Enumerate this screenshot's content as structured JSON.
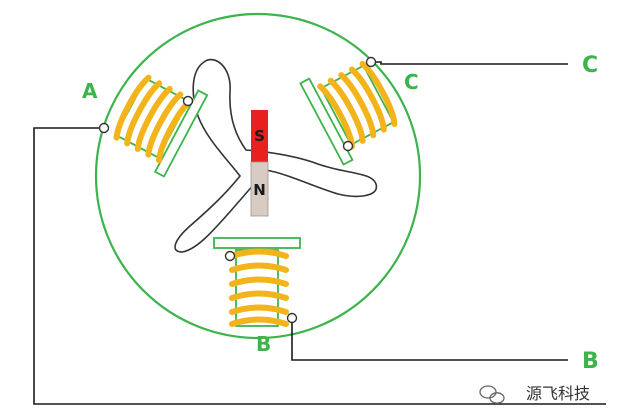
{
  "labels": {
    "coil_a": "A",
    "coil_b": "B",
    "coil_c": "C",
    "terminal_b": "B",
    "terminal_c": "C"
  },
  "magnet": {
    "south": "S",
    "north": "N"
  },
  "watermark": "源飞科技",
  "colors": {
    "stator": "#3cb44b",
    "coil": "#f2b41a",
    "magnet_south": "#e8201e",
    "magnet_north": "#d6ccc4",
    "wire": "#1a1a1a"
  }
}
